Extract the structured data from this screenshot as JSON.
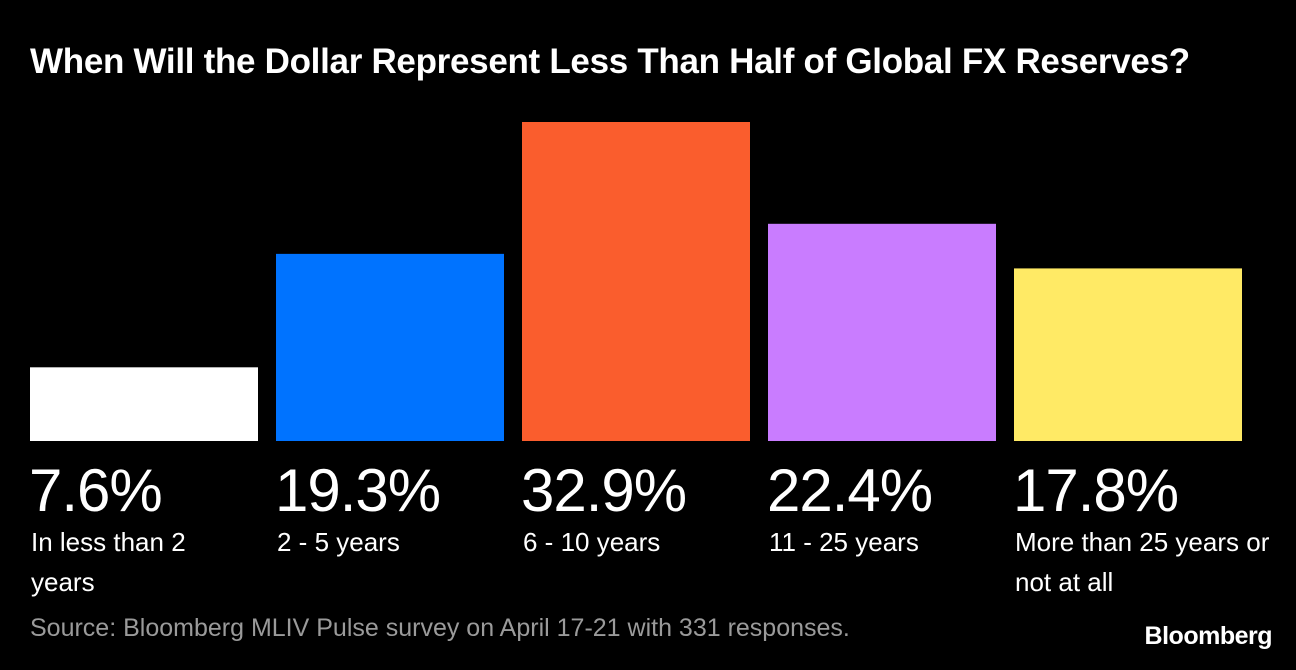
{
  "chart_data": {
    "type": "bar",
    "title": "When Will the Dollar Represent Less Than Half of Global FX Reserves?",
    "categories": [
      "In less than 2 years",
      "2 - 5 years",
      "6 - 10 years",
      "11 - 25 years",
      "More than 25 years or not at all"
    ],
    "values": [
      7.6,
      19.3,
      32.9,
      22.4,
      17.8
    ],
    "value_labels": [
      "7.6%",
      "19.3%",
      "32.9%",
      "22.4%",
      "17.8%"
    ],
    "colors": [
      "#ffffff",
      "#0073ff",
      "#fa5d2d",
      "#c97cff",
      "#ffea65"
    ],
    "unit": "%",
    "ylim": [
      0,
      32.9
    ],
    "grid": false,
    "legend": "none",
    "source": "Source: Bloomberg MLIV Pulse survey on April 17-21 with 331 responses.",
    "brand": "Bloomberg"
  }
}
